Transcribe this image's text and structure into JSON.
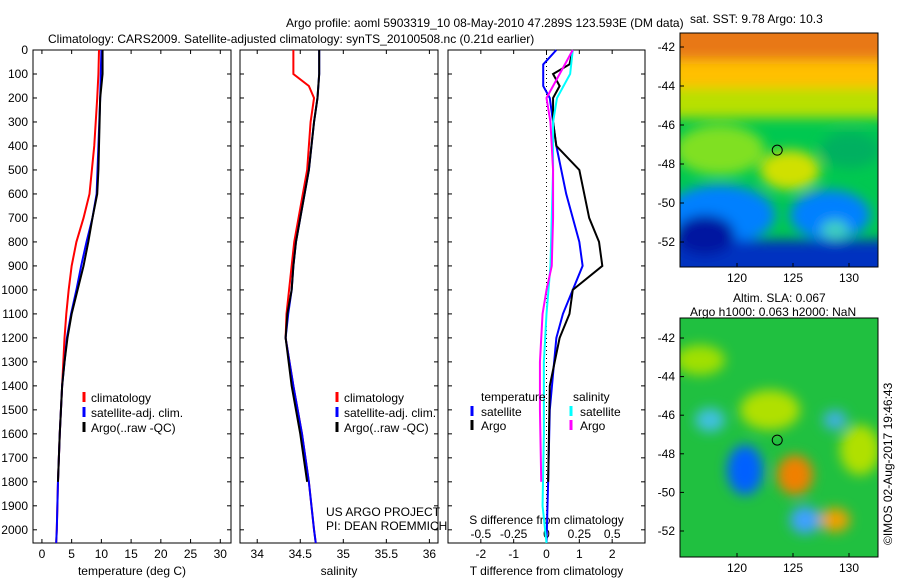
{
  "title_line1": "Argo profile: aoml 5903319_10 08-May-2010 47.289S 123.593E (DM data)",
  "title_line2": "Climatology: CARS2009. Satellite-adjusted climatology: synTS_20100508.nc (0.21d earlier)",
  "project_line1": "US ARGO PROJECT",
  "project_line2": "PI: DEAN ROEMMICH",
  "colors": {
    "climatology": "#ff0000",
    "satellite": "#0000ff",
    "argo": "#000000",
    "sal_satellite": "#00ffff",
    "sal_argo": "#ff00ff"
  },
  "chart_data": [
    {
      "type": "line",
      "name": "temperature",
      "xlabel": "temperature (deg C)",
      "ylabel": "depth",
      "xlim": [
        -1.5,
        31.8
      ],
      "ylim": [
        2055,
        0
      ],
      "xticks": [
        0,
        5,
        10,
        15,
        20,
        25,
        30
      ],
      "yticks": [
        0,
        100,
        200,
        300,
        400,
        500,
        600,
        700,
        800,
        900,
        1000,
        1100,
        1200,
        1300,
        1400,
        1500,
        1600,
        1700,
        1800,
        1900,
        2000
      ],
      "legend": [
        "climatology",
        "satellite-adj. clim.",
        "Argo(..raw -QC)"
      ],
      "series": [
        {
          "name": "climatology",
          "color": "#ff0000",
          "depth": [
            0,
            100,
            200,
            400,
            600,
            700,
            800,
            900,
            1000,
            1100,
            1200,
            1400,
            1600,
            1800,
            2000,
            2055
          ],
          "values": [
            9.6,
            9.5,
            9.3,
            8.8,
            8.0,
            7.0,
            5.8,
            5.0,
            4.5,
            4.1,
            3.8,
            3.4,
            3.0,
            2.7,
            2.5,
            2.4
          ]
        },
        {
          "name": "satellite-adj. clim.",
          "color": "#0000ff",
          "depth": [
            0,
            100,
            200,
            400,
            600,
            700,
            800,
            900,
            1000,
            1100,
            1200,
            1400,
            1600,
            1800,
            2000,
            2055
          ],
          "values": [
            10.0,
            9.9,
            9.8,
            9.5,
            9.2,
            8.5,
            7.5,
            6.6,
            5.8,
            4.9,
            4.2,
            3.4,
            3.0,
            2.7,
            2.5,
            2.4
          ]
        },
        {
          "name": "Argo(..raw -QC)",
          "color": "#000000",
          "depth": [
            0,
            100,
            150,
            200,
            300,
            400,
            500,
            600,
            700,
            800,
            900,
            1000,
            1100,
            1200,
            1300,
            1400,
            1600,
            1800
          ],
          "values": [
            10.2,
            10.2,
            10.0,
            9.8,
            9.7,
            9.6,
            9.5,
            9.3,
            8.5,
            7.8,
            7.0,
            6.0,
            5.0,
            4.3,
            3.8,
            3.4,
            3.0,
            2.7
          ]
        }
      ]
    },
    {
      "type": "line",
      "name": "salinity",
      "xlabel": "salinity",
      "ylabel": "depth",
      "xlim": [
        33.8,
        36.1
      ],
      "ylim": [
        2055,
        0
      ],
      "xticks": [
        34,
        34.5,
        35,
        35.5,
        36
      ],
      "xticklabels": [
        "34",
        "34.5",
        "35",
        "35.5",
        "36"
      ],
      "legend": [
        "climatology",
        "satellite-adj. clim.",
        "Argo(..raw -QC)"
      ],
      "series": [
        {
          "name": "climatology",
          "color": "#ff0000",
          "depth": [
            0,
            100,
            150,
            200,
            300,
            500,
            700,
            800,
            900,
            1000,
            1100,
            1200,
            1400,
            1600,
            1800,
            2000,
            2055
          ],
          "values": [
            34.42,
            34.42,
            34.6,
            34.66,
            34.62,
            34.58,
            34.48,
            34.43,
            34.4,
            34.37,
            34.34,
            34.33,
            34.42,
            34.52,
            34.6,
            34.66,
            34.68
          ]
        },
        {
          "name": "satellite-adj. clim.",
          "color": "#0000ff",
          "depth": [
            0,
            100,
            200,
            300,
            500,
            700,
            800,
            900,
            1000,
            1100,
            1200,
            1400,
            1600,
            1800,
            2000,
            2055
          ],
          "values": [
            34.72,
            34.72,
            34.7,
            34.66,
            34.6,
            34.5,
            34.45,
            34.42,
            34.4,
            34.36,
            34.33,
            34.42,
            34.52,
            34.6,
            34.66,
            34.68
          ]
        },
        {
          "name": "Argo(..raw -QC)",
          "color": "#000000",
          "depth": [
            0,
            100,
            200,
            300,
            500,
            700,
            800,
            900,
            1000,
            1100,
            1200,
            1400,
            1600,
            1800
          ],
          "values": [
            34.72,
            34.72,
            34.7,
            34.66,
            34.6,
            34.5,
            34.45,
            34.42,
            34.4,
            34.35,
            34.33,
            34.4,
            34.5,
            34.58
          ]
        }
      ]
    },
    {
      "type": "line",
      "name": "difference",
      "xlabel": "T difference from climatology",
      "x2label": "S difference from climatology",
      "xlim": [
        -3,
        3
      ],
      "ylim": [
        2055,
        0
      ],
      "xticks": [
        -2,
        -1,
        0,
        1,
        2
      ],
      "x2ticks": [
        -0.5,
        -0.25,
        0,
        0.25,
        0.5
      ],
      "x2ticklabels": [
        "-0.5",
        "-0.25",
        "0",
        "0.25",
        "0.5"
      ],
      "legend_groups": [
        {
          "title": "temperature",
          "items": [
            "satellite",
            "Argo"
          ]
        },
        {
          "title": "salinity",
          "items": [
            "satellite",
            "Argo"
          ]
        }
      ],
      "series": [
        {
          "name": "T satellite",
          "group": "temperature",
          "color": "#0000ff",
          "scale": "T",
          "depth": [
            0,
            60,
            100,
            150,
            200,
            300,
            400,
            600,
            800,
            900,
            1000,
            1100,
            1200,
            1500,
            1800,
            2055
          ],
          "values": [
            0.3,
            -0.1,
            -0.1,
            -0.1,
            0.1,
            0.2,
            0.3,
            0.6,
            1.0,
            1.1,
            0.8,
            0.5,
            0.3,
            0.1,
            0.05,
            0.0
          ]
        },
        {
          "name": "T Argo",
          "group": "temperature",
          "color": "#000000",
          "scale": "T",
          "depth": [
            0,
            60,
            100,
            150,
            200,
            300,
            400,
            500,
            700,
            800,
            900,
            1000,
            1100,
            1200,
            1400,
            1800
          ],
          "values": [
            0.8,
            0.7,
            0.2,
            0.4,
            0.2,
            0.2,
            0.3,
            1.0,
            1.3,
            1.6,
            1.7,
            0.8,
            0.7,
            0.4,
            0.1,
            0.05
          ]
        },
        {
          "name": "S satellite",
          "group": "salinity",
          "color": "#00ffff",
          "scale": "S",
          "depth": [
            0,
            100,
            200,
            300,
            500,
            700,
            900,
            1100,
            1300,
            1600,
            1900,
            2055
          ],
          "values": [
            0.2,
            0.18,
            0.08,
            0.05,
            0.05,
            0.04,
            0.03,
            0.0,
            -0.02,
            -0.02,
            -0.03,
            0.0
          ]
        },
        {
          "name": "S Argo",
          "group": "salinity",
          "color": "#ff00ff",
          "scale": "S",
          "depth": [
            0,
            100,
            200,
            300,
            500,
            700,
            900,
            1000,
            1100,
            1300,
            1500,
            1800
          ],
          "values": [
            0.2,
            0.1,
            0.0,
            0.03,
            0.05,
            0.05,
            0.04,
            0.0,
            -0.03,
            -0.05,
            -0.05,
            -0.04
          ]
        }
      ]
    }
  ],
  "maps": [
    {
      "title": "sat. SST: 9.78 Argo: 10.3",
      "lon_ticks": [
        120,
        125,
        130
      ],
      "lat_ticks": [
        -42,
        -44,
        -46,
        -48,
        -50,
        -52
      ],
      "argo_lon": 123.593,
      "argo_lat": -47.289
    },
    {
      "title1": "Altim. SLA: 0.067",
      "title2": "Argo h1000: 0.063 h2000: NaN",
      "lon_ticks": [
        120,
        125,
        130
      ],
      "lat_ticks": [
        -42,
        -44,
        -46,
        -48,
        -50,
        -52
      ],
      "argo_lon": 123.593,
      "argo_lat": -47.289
    }
  ],
  "credit": "©IMOS 02-Aug-2017 19:46:43"
}
